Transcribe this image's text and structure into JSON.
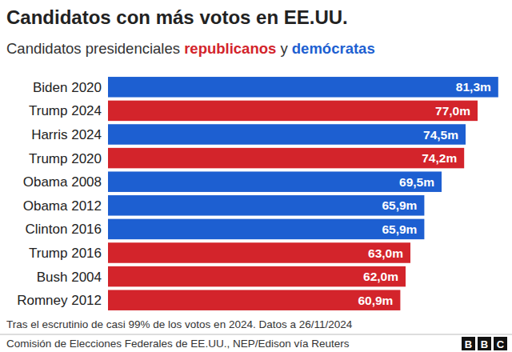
{
  "chart_data": {
    "type": "bar",
    "orientation": "horizontal",
    "title": "Candidatos con más votos en EE.UU.",
    "subtitle": "Candidatos presidenciales republicanos y demócratas",
    "categories": [
      "Biden 2020",
      "Trump 2024",
      "Harris 2024",
      "Trump 2020",
      "Obama 2008",
      "Obama 2012",
      "Clinton 2016",
      "Trump 2016",
      "Bush 2004",
      "Romney 2012"
    ],
    "series": [
      {
        "name": "republicanos",
        "color": "#d3242b",
        "values": [
          null,
          77.0,
          null,
          74.2,
          null,
          null,
          null,
          63.0,
          62.0,
          60.9
        ],
        "value_labels": [
          null,
          "77,0m",
          null,
          "74,2m",
          null,
          null,
          null,
          "63,0m",
          "62,0m",
          "60,9m"
        ]
      },
      {
        "name": "demócratas",
        "color": "#1d5fd1",
        "values": [
          81.3,
          null,
          74.5,
          null,
          69.5,
          65.9,
          65.9,
          null,
          null,
          null
        ],
        "value_labels": [
          "81,3m",
          null,
          "74,5m",
          null,
          "69,5m",
          "65,9m",
          "65,9m",
          null,
          null,
          null
        ]
      }
    ],
    "xlim": [
      0,
      82
    ],
    "data_labels": true,
    "tick_labels": "y",
    "grid": false,
    "note": "Tras el escrutinio de casi 99% de los votos en 2024. Datos a 26/11/2024",
    "source": "Comisión de Elecciones Federales de EE.UU., NEP/Edison vía Reuters",
    "logo": "BBC"
  }
}
